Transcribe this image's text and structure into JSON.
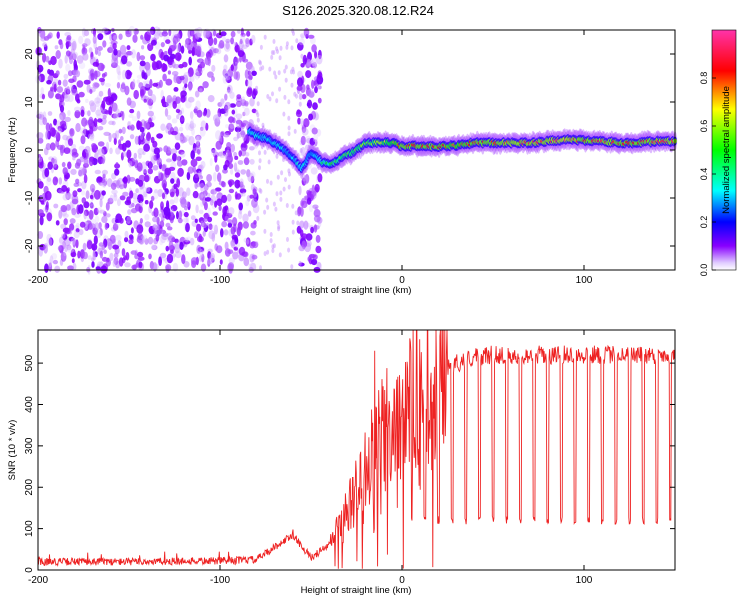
{
  "title": "S126.2025.320.08.12.R24",
  "chart_data": [
    {
      "type": "heatmap",
      "xlabel": "Height of straight line (km)",
      "ylabel": "Frequency (Hz)",
      "xlim": [
        -200,
        150
      ],
      "ylim": [
        -25,
        25
      ],
      "x_ticks": [
        -200,
        -100,
        0,
        100
      ],
      "x_tick_labels": [
        "-200",
        "-100",
        "0",
        "100"
      ],
      "y_ticks": [
        -20,
        -10,
        0,
        10,
        20
      ],
      "y_tick_labels": [
        "-20",
        "-10",
        "0",
        "10",
        "20"
      ],
      "colorbar": {
        "label": "Normalized spectral amplitude",
        "range": [
          0,
          1
        ],
        "ticks": [
          0,
          0.2,
          0.4,
          0.6,
          0.8
        ],
        "tick_labels": [
          "0.0",
          "0.2",
          "0.4",
          "0.6",
          "0.8"
        ]
      },
      "noise_regions": [
        {
          "x_range": [
            -200,
            -80
          ],
          "amplitude": 0.1
        },
        {
          "x_range": [
            -57,
            -45
          ],
          "amplitude": 0.1
        }
      ],
      "ridge": {
        "x": [
          -84,
          -80,
          -75,
          -70,
          -66,
          -62,
          -58,
          -55,
          -50,
          -47,
          -44,
          -40,
          -35,
          -30,
          -25,
          -20,
          -15,
          -10,
          -5,
          0,
          10,
          20,
          30,
          40,
          50,
          60,
          70,
          80,
          90,
          100,
          110,
          120,
          130,
          140,
          150
        ],
        "frequency": [
          4,
          3,
          2.5,
          1.5,
          0.5,
          -1,
          -2.5,
          -4,
          -0.5,
          -1.5,
          -2.5,
          -3,
          -2,
          -1,
          0,
          1.5,
          1.5,
          1.5,
          1.5,
          0.8,
          0.8,
          0.8,
          1,
          1.5,
          1.5,
          1.5,
          1.5,
          1.8,
          2.2,
          2,
          1.8,
          1.5,
          1.5,
          1.8,
          1.8
        ],
        "amplitude": [
          0.4,
          0.35,
          0.35,
          0.35,
          0.35,
          0.3,
          0.35,
          0.4,
          0.3,
          0.35,
          0.45,
          0.5,
          0.55,
          0.6,
          0.6,
          0.6,
          0.6,
          0.65,
          0.7,
          0.85,
          0.85,
          0.85,
          0.75,
          0.85,
          0.85,
          0.9,
          0.9,
          0.9,
          0.95,
          0.85,
          0.9,
          0.85,
          0.85,
          0.9,
          0.9
        ]
      }
    },
    {
      "type": "line",
      "xlabel": "Height of straight line (km)",
      "ylabel": "SNR (10 * v/v)",
      "xlim": [
        -200,
        150
      ],
      "ylim": [
        0,
        580
      ],
      "x_ticks": [
        -200,
        -100,
        0,
        100
      ],
      "x_tick_labels": [
        "-200",
        "-100",
        "0",
        "100"
      ],
      "y_ticks": [
        0,
        100,
        200,
        300,
        400,
        500
      ],
      "y_tick_labels": [
        "0",
        "100",
        "200",
        "300",
        "400",
        "500"
      ],
      "color": "#ee2222",
      "envelope": {
        "x": [
          -200,
          -150,
          -100,
          -80,
          -70,
          -60,
          -50,
          -40,
          -30,
          -20,
          -10,
          0,
          10,
          20,
          30,
          40,
          50,
          60,
          80,
          100,
          120,
          150
        ],
        "snr": [
          20,
          20,
          22,
          25,
          55,
          85,
          30,
          60,
          140,
          240,
          330,
          400,
          440,
          470,
          500,
          515,
          520,
          520,
          520,
          520,
          520,
          520
        ]
      },
      "dips": {
        "first_x": 5,
        "spacing_km": 7.5,
        "last_x": 148,
        "snr": 120
      },
      "spikes": [
        {
          "x": -15,
          "snr": 530
        },
        {
          "x": -14,
          "snr": 270
        }
      ]
    }
  ]
}
